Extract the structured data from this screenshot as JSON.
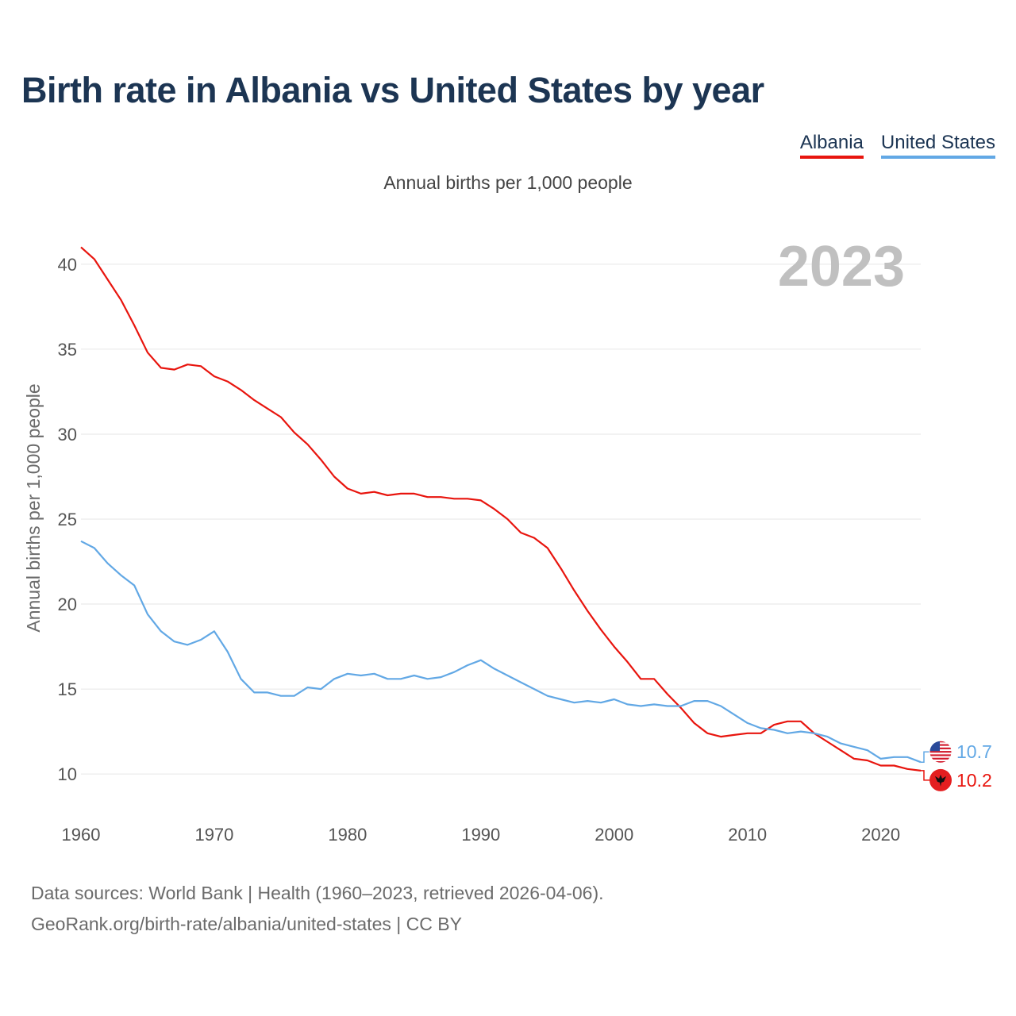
{
  "header": {
    "title": "Birth rate in Albania vs United States by year",
    "subtitle": "Annual births per 1,000 people"
  },
  "legend": {
    "albania_label": "Albania",
    "us_label": "United States"
  },
  "colors": {
    "albania": "#e8150e",
    "united_states": "#62a8e5",
    "grid": "#e6e6e6"
  },
  "footer": {
    "line1": "Data sources: World Bank | Health (1960–2023, retrieved 2026-04-06).",
    "line2": "GeoRank.org/birth-rate/albania/united-states | CC BY"
  },
  "chart_data": {
    "type": "line",
    "title": "Birth rate in Albania vs United States by year",
    "ylabel": "Annual births per 1,000 people",
    "xlabel": "",
    "year_label": "2023",
    "xlim": [
      1960,
      2023
    ],
    "ylim": [
      8,
      42
    ],
    "grid": true,
    "legend_position": "top-right",
    "x_ticks": [
      1960,
      1970,
      1980,
      1990,
      2000,
      2010,
      2020
    ],
    "y_ticks": [
      10,
      15,
      20,
      25,
      30,
      35,
      40
    ],
    "x": [
      1960,
      1961,
      1962,
      1963,
      1964,
      1965,
      1966,
      1967,
      1968,
      1969,
      1970,
      1971,
      1972,
      1973,
      1974,
      1975,
      1976,
      1977,
      1978,
      1979,
      1980,
      1981,
      1982,
      1983,
      1984,
      1985,
      1986,
      1987,
      1988,
      1989,
      1990,
      1991,
      1992,
      1993,
      1994,
      1995,
      1996,
      1997,
      1998,
      1999,
      2000,
      2001,
      2002,
      2003,
      2004,
      2005,
      2006,
      2007,
      2008,
      2009,
      2010,
      2011,
      2012,
      2013,
      2014,
      2015,
      2016,
      2017,
      2018,
      2019,
      2020,
      2021,
      2022,
      2023
    ],
    "series": [
      {
        "name": "Albania",
        "end_label": "10.2",
        "values": [
          41.0,
          40.3,
          39.1,
          37.9,
          36.4,
          34.8,
          33.9,
          33.8,
          34.1,
          34.0,
          33.4,
          33.1,
          32.6,
          32.0,
          31.5,
          31.0,
          30.1,
          29.4,
          28.5,
          27.5,
          26.8,
          26.5,
          26.6,
          26.4,
          26.5,
          26.5,
          26.3,
          26.3,
          26.2,
          26.2,
          26.1,
          25.6,
          25.0,
          24.2,
          23.9,
          23.3,
          22.1,
          20.8,
          19.6,
          18.5,
          17.5,
          16.6,
          15.6,
          15.6,
          14.7,
          13.9,
          13.0,
          12.4,
          12.2,
          12.3,
          12.4,
          12.4,
          12.9,
          13.1,
          13.1,
          12.4,
          11.9,
          11.4,
          10.9,
          10.8,
          10.5,
          10.5,
          10.3,
          10.2
        ]
      },
      {
        "name": "United States",
        "end_label": "10.7",
        "values": [
          23.7,
          23.3,
          22.4,
          21.7,
          21.1,
          19.4,
          18.4,
          17.8,
          17.6,
          17.9,
          18.4,
          17.2,
          15.6,
          14.8,
          14.8,
          14.6,
          14.6,
          15.1,
          15.0,
          15.6,
          15.9,
          15.8,
          15.9,
          15.6,
          15.6,
          15.8,
          15.6,
          15.7,
          16.0,
          16.4,
          16.7,
          16.2,
          15.8,
          15.4,
          15.0,
          14.6,
          14.4,
          14.2,
          14.3,
          14.2,
          14.4,
          14.1,
          14.0,
          14.1,
          14.0,
          14.0,
          14.3,
          14.3,
          14.0,
          13.5,
          13.0,
          12.7,
          12.6,
          12.4,
          12.5,
          12.4,
          12.2,
          11.8,
          11.6,
          11.4,
          10.9,
          11.0,
          11.0,
          10.7
        ]
      }
    ]
  }
}
